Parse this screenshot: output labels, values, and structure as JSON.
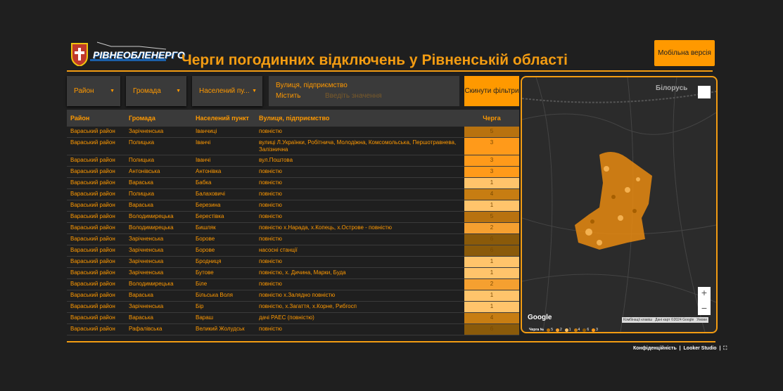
{
  "header": {
    "logo": "РІВНЕОБЛЕНЕРГО",
    "title": "Черги погодинних відключень у Рівненській області",
    "mobile_button": "Мобільна версія"
  },
  "filters": [
    "Район",
    "Громада",
    "Населений пу..."
  ],
  "street_filter": {
    "label": "Вулиця, підприємство",
    "mode": "Містить",
    "placeholder": "Введіть значення"
  },
  "reset_button": "Скинути фільтри",
  "table": {
    "columns": [
      "Район",
      "Громада",
      "Населений пункт",
      "Вулиця, підприємство",
      "Черга"
    ],
    "rows": [
      [
        "Вараський район",
        "Зарічненська",
        "Іванчиці",
        "повністю",
        5
      ],
      [
        "Вараський район",
        "Полицька",
        "Іванчі",
        "вулиці Л.Українки, Робітнича, Молодіжна, Комсомольська, Першотравнева, Залізнична",
        3
      ],
      [
        "Вараський район",
        "Полицька",
        "Іванчі",
        "вул.Поштова",
        3
      ],
      [
        "Вараський район",
        "Антонівська",
        "Антонівка",
        "повністю",
        3
      ],
      [
        "Вараський район",
        "Вараська",
        "Бабка",
        "повністю",
        1
      ],
      [
        "Вараський район",
        "Полицька",
        "Балаховичі",
        "повністю",
        4
      ],
      [
        "Вараський район",
        "Вараська",
        "Березина",
        "повністю",
        1
      ],
      [
        "Вараський район",
        "Володимирецька",
        "Берестівка",
        "повністю",
        5
      ],
      [
        "Вараський район",
        "Володимирецька",
        "Бишляк",
        "повністю х.Нарада, х.Копець, х.Острове - повністю",
        2
      ],
      [
        "Вараський район",
        "Зарічненська",
        "Борове",
        "повністю",
        6
      ],
      [
        "Вараський район",
        "Зарічненська",
        "Борове",
        "насосні станції",
        6
      ],
      [
        "Вараський район",
        "Зарічненська",
        "Бродниця",
        "повністю",
        1
      ],
      [
        "Вараський район",
        "Зарічненська",
        "Бутове",
        "повністю, х. Дичина, Марки, Буда",
        1
      ],
      [
        "Вараський район",
        "Володимирецька",
        "Біле",
        "повністю",
        2
      ],
      [
        "Вараський район",
        "Вараська",
        "Більська Воля",
        "повністю х.Залядно повністю",
        1
      ],
      [
        "Вараський район",
        "Зарічненська",
        "Бір",
        "повністю, х.Загаття, х.Корне, Рибгосп",
        1
      ],
      [
        "Вараський район",
        "Вараська",
        "Вараш",
        "дачі РАЕС (повністю)",
        4
      ],
      [
        "Вараський район",
        "Рафалівська",
        "Великий Жолудськ",
        "повністю",
        6
      ]
    ]
  },
  "queue_colors": {
    "1": "#ffc46b",
    "2": "#f5a030",
    "3": "#ff9a1a",
    "4": "#c77d12",
    "5": "#b8720f",
    "6": "#8a5a0a"
  },
  "map": {
    "country_label": "Білорусь",
    "brand": "Google",
    "attribution": [
      "Комбінації клавіш",
      "Дані карт ©2024 Google",
      "Умови"
    ],
    "legend_title": "Черга №",
    "legend": [
      5,
      2,
      1,
      4,
      6,
      3
    ]
  },
  "footer": [
    "Конфіденційність",
    "Looker Studio"
  ]
}
